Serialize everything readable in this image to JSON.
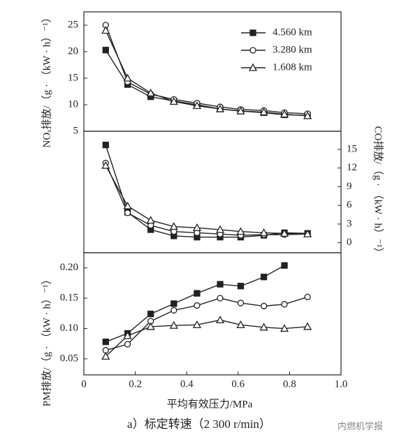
{
  "chart_data": [
    {
      "type": "line",
      "y_label": "NOₓ排放/（g · （kW · h）⁻¹）",
      "y_axis_side": "left",
      "x": [
        0.085,
        0.17,
        0.26,
        0.35,
        0.44,
        0.53,
        0.61,
        0.7,
        0.78,
        0.87
      ],
      "xlim": [
        0,
        1
      ],
      "ylim": [
        5,
        27.5
      ],
      "yticks": [
        5,
        10,
        15,
        20,
        25
      ],
      "legend": "upper right",
      "series": [
        {
          "name": "4.560 km",
          "color": "#222222",
          "marker": "square",
          "values": [
            20.3,
            13.8,
            11.5,
            10.7,
            10.0,
            9.2,
            8.8,
            8.5,
            8.1,
            8.0
          ]
        },
        {
          "name": "3.280 km",
          "color": "#222222",
          "marker": "circle",
          "values": [
            25.0,
            14.3,
            12.0,
            11.0,
            10.3,
            9.6,
            9.1,
            8.9,
            8.5,
            8.3
          ]
        },
        {
          "name": "1.608 km",
          "color": "#222222",
          "marker": "triangle",
          "values": [
            24.0,
            15.0,
            12.2,
            10.6,
            9.8,
            9.2,
            8.8,
            8.6,
            8.2,
            7.9
          ]
        }
      ]
    },
    {
      "type": "line",
      "y_label": "CO排放/（g · （kW · h）⁻¹）",
      "y_axis_side": "right",
      "x": [
        0.085,
        0.17,
        0.26,
        0.35,
        0.44,
        0.53,
        0.61,
        0.7,
        0.78,
        0.87
      ],
      "xlim": [
        0,
        1
      ],
      "ylim": [
        -1.6,
        17.9
      ],
      "yticks": [
        0,
        3,
        6,
        9,
        12,
        15
      ],
      "series": [
        {
          "color": "#222222",
          "marker": "square",
          "values": [
            15.7,
            4.9,
            2.1,
            1.1,
            0.9,
            0.9,
            0.9,
            1.2,
            1.6,
            1.5
          ]
        },
        {
          "color": "#222222",
          "marker": "circle",
          "values": [
            12.8,
            4.8,
            2.8,
            1.8,
            1.6,
            1.4,
            1.2,
            1.3,
            1.3,
            1.4
          ]
        },
        {
          "color": "#222222",
          "marker": "triangle",
          "values": [
            12.4,
            5.9,
            3.6,
            2.6,
            2.4,
            2.1,
            1.8,
            1.6,
            1.5,
            1.4
          ]
        }
      ]
    },
    {
      "type": "line",
      "y_label": "PM排放/（g · （kW · h）⁻¹）",
      "y_axis_side": "left",
      "x_label": "平均有效压力/MPa",
      "x": [
        0.085,
        0.17,
        0.26,
        0.35,
        0.44,
        0.53,
        0.61,
        0.7,
        0.78,
        0.87
      ],
      "xlim": [
        0,
        1
      ],
      "xticks": [
        0,
        0.2,
        0.4,
        0.6,
        0.8,
        {
          "value": 1,
          "label": "1.0"
        }
      ],
      "ylim": [
        0.0235,
        0.225
      ],
      "yticks": [
        0.05,
        {
          "value": 0.1,
          "label": "0.10"
        },
        0.15,
        {
          "value": 0.2,
          "label": "0.20"
        }
      ],
      "series": [
        {
          "color": "#222222",
          "marker": "square",
          "values": [
            0.078,
            0.092,
            0.124,
            0.141,
            0.158,
            0.173,
            0.17,
            0.185,
            0.204,
            null
          ]
        },
        {
          "color": "#222222",
          "marker": "circle",
          "values": [
            0.064,
            0.074,
            0.112,
            0.13,
            0.138,
            0.15,
            0.142,
            0.137,
            0.14,
            0.152
          ]
        },
        {
          "color": "#222222",
          "marker": "triangle",
          "values": [
            0.054,
            0.088,
            0.103,
            0.105,
            0.106,
            0.114,
            0.106,
            0.102,
            0.1,
            0.103
          ]
        }
      ]
    }
  ],
  "caption": "a）标定转速（2 300 r/min）",
  "watermark": "内燃机学报"
}
